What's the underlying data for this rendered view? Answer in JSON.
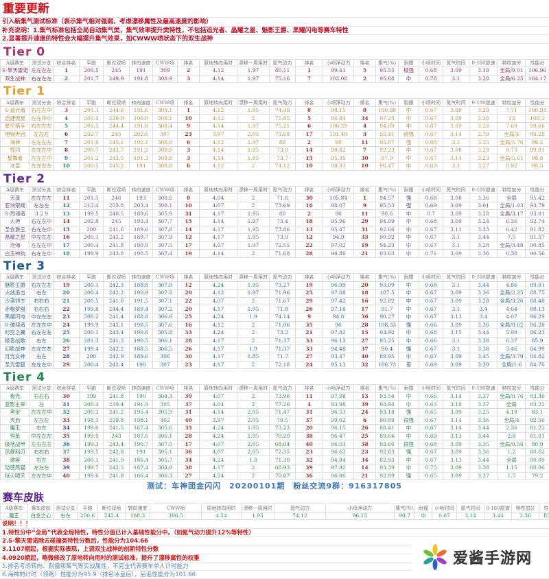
{
  "header": {
    "title": "重要更新",
    "lines": [
      "引入新集气测试标准（表示集气相对强弱，考虑漂移属性及最高速度的影响）",
      "补充说明：1.集气标准包括全局自动集气类，集气效率提升类特性，不包括追光者、晶耀之星、魅影王爵、黑耀闪电等赛车特性",
      "2.显著提升速度的特性会大幅提升集气效果，如CWWW喷状态下的双生战神"
    ]
  },
  "columns": [
    "A级赛车",
    "测试分支",
    "综合排名",
    "平跑",
    "断位双喷",
    "转向速度",
    "CWW喷",
    "排名",
    "原地转向用时",
    "漂移一周用时",
    "氮气动力",
    "排名",
    "小喷净动力",
    "排名",
    "集气(%)",
    "耐撞",
    "小喷时间",
    "氮气时间",
    "0-180提速",
    "特性加分",
    "性能分"
  ],
  "tiers": [
    {
      "name": "Tier 0",
      "color": "#b3306e",
      "text_color": "#8a3a6a",
      "rows": [
        [
          "S-擎天雷诺",
          "左左左左",
          "1",
          "200.5",
          "245",
          "191",
          "309",
          "2",
          "4.12",
          "1.97",
          "80.11",
          "1",
          "99.41",
          "5",
          "95.55",
          "极强",
          "0.68",
          "3.09",
          "3.18",
          "全局/9.01",
          "106.96"
        ],
        [
          "双生战神",
          "右左左左",
          "2",
          "201.7",
          "249.9",
          "191.8",
          "308.9",
          "3",
          "4.14",
          "1.97",
          "75.16",
          "7",
          "103.08",
          "2",
          "95.88",
          "中",
          "0.78",
          "3.1",
          "3.28",
          "全局/6.25",
          "104.17"
        ]
      ]
    },
    {
      "name": "Tier 1",
      "color": "#e8a030",
      "text_color": "#b8924a",
      "rows": [
        [
          "S-追光者",
          "右左左中",
          "3",
          "201.1",
          "244.6",
          "191.6",
          "309.1",
          "1",
          "4.12",
          "1.95",
          "74.49",
          "8",
          "98.15",
          "8",
          "100.88",
          "中",
          "0.67",
          "3.09",
          "3.28",
          "7.71",
          "100.93"
        ],
        [
          "迅捷流星",
          "左左中中",
          "4",
          "200.4",
          "239.9",
          "190.9",
          "308.1",
          "10",
          "4.12",
          "2",
          "75.85",
          "5",
          "94.84",
          "34",
          "97.25",
          "中",
          "0.67",
          "3.08",
          "3.36",
          "13",
          "100.2"
        ],
        [
          "星空猎手",
          "右左左左",
          "5",
          "201.5",
          "244.4",
          "191.8",
          "308.4",
          "9",
          "4.14",
          "1.97",
          "75.21",
          "6",
          "100.39",
          "4",
          "94.89",
          "中",
          "0.67",
          "3.09",
          "3.28",
          "7.69",
          "99.66"
        ],
        [
          "地狱天启",
          "左左左",
          "6",
          "202.7",
          "245",
          "202.6",
          "307",
          "23",
          "3.97",
          "2.05",
          "73.68",
          "17",
          "101.48",
          "3",
          "95.41",
          "很强",
          "0.67",
          "3.14",
          "2.78",
          "全局/4",
          "99.28"
        ],
        [
          "海神",
          "左左左左",
          "7",
          "201.6",
          "245.1",
          "192.1",
          "308.8",
          "6",
          "4.12",
          "1.97",
          "80",
          "2",
          "98",
          "11",
          "95.87",
          "强",
          "0.68",
          "3.1",
          "3.25",
          "全局/5.76",
          "99.2"
        ],
        [
          "惊鸿",
          "左左左中",
          "8",
          "200.7",
          "243.7",
          "191.2",
          "308.9",
          "3",
          "4.14",
          "1.95",
          "73.8",
          "14",
          "98.42",
          "7",
          "92.23",
          "中",
          "0.67",
          "3.08",
          "3.28",
          "8.73",
          "99.01"
        ],
        [
          "星舞者",
          "左左左中",
          "9",
          "201.2",
          "243.5",
          "191.3",
          "308.9",
          "3",
          "4.14",
          "1.85",
          "73.7",
          "15",
          "95.95",
          "30",
          "97.9",
          "中",
          "0.67",
          "3.14",
          "3.23",
          "全局/5.61",
          "98.8"
        ],
        [
          "冰皇",
          "左左左左",
          "10",
          "200.5",
          "245.2",
          "191",
          "308.8",
          "6",
          "4.12",
          "2",
          "74.12",
          "10",
          "98.03",
          "10",
          "96.47",
          "中",
          "0.69",
          "3.1",
          "3.27",
          "8.92",
          "98.5"
        ]
      ]
    },
    {
      "name": "Tier 2",
      "color": "#5e2e8e",
      "text_color": "#6a5a8a",
      "rows": [
        [
          "天蓬",
          "左左左左",
          "11",
          "201.5",
          "246",
          "193",
          "308.6",
          "8",
          "4.04",
          "2",
          "71.6",
          "30",
          "105.84",
          "1",
          "94.57",
          "强",
          "0.68",
          "3.08",
          "3.36",
          "全局",
          "95.42"
        ],
        [
          "亚洲荣耀",
          "左左左",
          "12",
          "212.4",
          "253.8",
          "203.4",
          "308.1",
          "10",
          "4.07",
          "2",
          "73.69",
          "16",
          "98.07",
          "9",
          "95.53",
          "强",
          "0.69",
          "3.09",
          "3.01",
          "全局/1.93",
          "93.79"
        ],
        [
          "S-烈魂者",
          "3 2 9",
          "13",
          "199.5",
          "240.5",
          "189.6",
          "305.9",
          "31",
          "4.17",
          "1.95",
          "80",
          "2",
          "98",
          "11",
          "90.6",
          "中",
          "0.7",
          "3.09",
          "3.28",
          "全局/3.17",
          "93.01"
        ],
        [
          "火神",
          "右左左中",
          "14",
          "202.8",
          "245",
          "193.4",
          "307.7",
          "15",
          "4.14",
          "1.97",
          "73.4",
          "18",
          "95.96",
          "29",
          "94.99",
          "中",
          "0.68",
          "3.09",
          "3.24",
          "6.36",
          "92.74"
        ],
        [
          "圣会爵王",
          "右左左中",
          "15",
          "200",
          "241.6",
          "189.6",
          "307.8",
          "14",
          "4.17",
          "1.95",
          "73.86",
          "13",
          "95.47",
          "31",
          "92.66",
          "中",
          "0.67",
          "3.11",
          "3.33",
          "6.42",
          "91.82"
        ],
        [
          "晶耀之星",
          "中左左左",
          "16",
          "200.1",
          "242.2",
          "189.7",
          "307.9",
          "12",
          "4.17",
          "1.95",
          "73.9",
          "12",
          "94.9",
          "33",
          "90.92",
          "中",
          "0.67",
          "3.1",
          "3.44",
          "7.5",
          "91.57"
        ],
        [
          "沧海",
          "左左左中",
          "17",
          "200.4",
          "241.8",
          "190.9",
          "307.5",
          "17",
          "4.07",
          "1.97",
          "72.55",
          "22",
          "97.02",
          "19",
          "94.23",
          "中",
          "0.67",
          "3.1",
          "3.28",
          "全局/3.48",
          "90.85"
        ],
        [
          "白玉神驹",
          "右左左中",
          "18",
          "199.9",
          "243.8",
          "190.5",
          "307.4",
          "19",
          "4.14",
          "2",
          "71.68",
          "28",
          "96.86",
          "21",
          "93.63",
          "中",
          "0.71",
          "3.09",
          "3.36",
          "6.38",
          "90.56"
        ]
      ]
    },
    {
      "name": "Tier 3",
      "color": "#1e5a96",
      "text_color": "#3a6a9a",
      "rows": [
        [
          "魅影王爵",
          "右左左左",
          "19",
          "200.1",
          "242.3",
          "188.8",
          "307.9",
          "12",
          "4.24",
          "1.95",
          "73.27",
          "19",
          "96.99",
          "20",
          "93.09",
          "中",
          "0.68",
          "3.1",
          "3.44",
          "4.86",
          "89.01"
        ],
        [
          "火线追击",
          "右左",
          "20",
          "200.4",
          "242.2",
          "190.9",
          "307.2",
          "20",
          "4.12",
          "1.97",
          "71.96",
          "25",
          "97.08",
          "18",
          "107.5",
          "中",
          "0.67",
          "3.09",
          "3.36",
          "全局/2.25",
          "88.75"
        ],
        [
          "沙漠领主",
          "右右右",
          "21",
          "200.5",
          "241.8",
          "191.5",
          "307.1",
          "22",
          "4.07",
          "2",
          "71.67",
          "29",
          "97.42",
          "16",
          "92.82",
          "中",
          "0.67",
          "3.09",
          "3.28",
          "全局/3.26",
          "88.48"
        ],
        [
          "赤橙梦魇",
          "右右右",
          "22",
          "199.8",
          "244.4",
          "189.4",
          "307.2",
          "20",
          "4.17",
          "1.95",
          "71.8",
          "26",
          "97.18",
          "17",
          "91.7",
          "中",
          "0.67",
          "3.1",
          "3.4",
          "4.64",
          "88.13"
        ],
        [
          "黑耀闪电",
          "中左左左",
          "23",
          "200.2",
          "241.4",
          "188.8",
          "306.6",
          "25",
          "4.24",
          "1.9",
          "74.14",
          "9",
          "94.8",
          "36",
          "90.27",
          "中",
          "0.67",
          "3.13",
          "3.4",
          "4.07",
          "86.29"
        ],
        [
          "S-破晓者",
          "左左左中",
          "24",
          "199.9",
          "242.1",
          "190.5",
          "307.6",
          "16",
          "4.12",
          "2",
          "71.06",
          "35",
          "96",
          "28",
          "108.33",
          "强",
          "0.66",
          "3.09",
          "3.36",
          "全局/0.62",
          "86.28"
        ],
        [
          "时空之翼",
          "右左左左",
          "25",
          "200.1",
          "243.4",
          "190.6",
          "305.8",
          "33",
          "4.24",
          "2",
          "73.2",
          "21",
          "97.82",
          "15",
          "93.92",
          "中",
          "0.68",
          "3.15",
          "3.44",
          "5.98",
          "86.23"
        ],
        [
          "极音战歌",
          "右左",
          "26",
          "201.3",
          "241.3",
          "190.5",
          "306.1",
          "28",
          "4.17",
          "2",
          "71.37",
          "33",
          "96.13",
          "27",
          "95.25",
          "中",
          "0.66",
          "3.1",
          "3.38",
          "6.37",
          "85.9"
        ],
        [
          "幻影战神",
          "左左左左",
          "27",
          "199.4",
          "242.2",
          "188.5",
          "306.5",
          "26",
          "4.17",
          "1.9",
          "71.37",
          "33",
          "94.48",
          "37",
          "90.4",
          "强",
          "0.67",
          "3.1",
          "3.38",
          "3.46",
          "84.99"
        ],
        [
          "月光女神",
          "右左",
          "28",
          "200",
          "242.9",
          "189.6",
          "306",
          "30",
          "4.17",
          "1.85",
          "71.7",
          "27",
          "93.47",
          "40",
          "89.95",
          "中",
          "0.67",
          "3.09",
          "3.45",
          "全局/3.79",
          "84.82"
        ],
        [
          "圣光雪狐",
          "左左左中",
          "29",
          "200.4",
          "242.4",
          "190",
          "307",
          "23",
          "4.17",
          "2",
          "72.18",
          "24",
          "95.13",
          "32",
          "106.73",
          "差",
          "0.69",
          "3.09",
          "3.39",
          "全局/1.6",
          "84.76"
        ]
      ]
    },
    {
      "name": "Tier 4",
      "color": "#1e8a4e",
      "text_color": "#3a8a5a",
      "rows": [
        [
          "极光",
          "右右右",
          "30",
          "199",
          "241.8",
          "190",
          "304.3",
          "39",
          "4.07",
          "2",
          "73.96",
          "11",
          "97.98",
          "13",
          "93.54",
          "中",
          "0.66",
          "3.14",
          "3.37",
          "全局/0.76",
          "83.36"
        ],
        [
          "蓝影主宰",
          "左",
          "31",
          "200.4",
          "239.4",
          "191.9",
          "305",
          "37",
          "4.04",
          "2",
          "77.26",
          "4",
          "93.98",
          "39",
          "93.98",
          "中",
          "0.63",
          "3.18",
          "3.37",
          "全局",
          "83.22"
        ],
        [
          "黑金",
          "左左左中",
          "32",
          "200.2",
          "241.2",
          "195.4",
          "305.9",
          "31",
          "4.14",
          "2.05",
          "71.47",
          "31",
          "96.53",
          "24",
          "93.18",
          "强",
          "0.65",
          "3.09",
          "3.25",
          "4.18",
          "83.1"
        ],
        [
          "天启",
          "左左左",
          "33",
          "198.1",
          "239.8",
          "198.1",
          "302",
          "40",
          "3.97",
          "2.05",
          "70.5",
          "37",
          "99.02",
          "6",
          "90.89",
          "很强",
          "0.67",
          "3.14",
          "3.36",
          "全局/4",
          "82.56"
        ],
        [
          "魔王",
          "右左",
          "34",
          "199.6",
          "241.5",
          "187.4",
          "305.6",
          "35",
          "4.24",
          "1.95",
          "73.23",
          "20",
          "96.15",
          "26",
          "88.41",
          "中",
          "0.67",
          "3.14",
          "3.44",
          "2.36",
          "81.22"
        ],
        [
          "恒星",
          "中左左左",
          "35",
          "199.9",
          "243",
          "187.6",
          "306.1",
          "28",
          "4.24",
          "1.95",
          "70.29",
          "38",
          "96.47",
          "25",
          "89.64",
          "中",
          "0.69",
          "3.13",
          "3.44",
          "2.8",
          "81.01"
        ],
        [
          "极地战甲",
          "左右左左",
          "36",
          "199.3",
          "243.4",
          "190.7",
          "307.5",
          "17",
          "4.07",
          "2.05",
          "68.04",
          "40",
          "94.03",
          "38",
          "93.66",
          "很强",
          "0.68",
          "3.09",
          "3.35",
          "全局/0.56",
          "80.9"
        ],
        [
          "风暴利刃",
          "右右右",
          "37",
          "199.5",
          "242.8",
          "191",
          "305.1",
          "36",
          "4.07",
          "2.05",
          "72.35",
          "23",
          "96.62",
          "23",
          "92.83",
          "强",
          "0.67",
          "3.09",
          "3.36",
          "1.2",
          "80.62"
        ],
        [
          "骇客",
          "右左",
          "38",
          "200.1",
          "241.9",
          "186.4",
          "305.7",
          "34",
          "4.24",
          "1.8",
          "71.39",
          "32",
          "94.84",
          "34",
          "82.93",
          "中",
          "0.67",
          "3.13",
          "3.44",
          "全局",
          "80.09"
        ],
        [
          "动感熊猫",
          "左左左",
          "39",
          "199.7",
          "242.5",
          "187.4",
          "304.9",
          "38",
          "4.17",
          "2",
          "68.93",
          "39",
          "97.92",
          "14",
          "93.39",
          "中",
          "0.75",
          "3.09",
          "3.38",
          "1.15",
          "80.06"
        ],
        [
          "狱火啸天",
          "左左左中",
          "40",
          "199.6",
          "241.8",
          "186.4",
          "306.3",
          "27",
          "4.24",
          "2",
          "70.87",
          "36",
          "96.86",
          "21",
          "92.89",
          "强",
          "0.65",
          "3.09",
          "3.37",
          "1.5",
          "79.2"
        ]
      ]
    }
  ],
  "test_line": "测试：车神团金闪闪　20200101期　粉丝交流9群：916317805",
  "skins": {
    "title": "赛车皮肤",
    "text_color": "#3a8a5a",
    "columns": [
      "A级赛车",
      "赛车皮肤",
      "测试分支",
      "平跑",
      "断位双喷",
      "转向速度",
      "CWW喷",
      "原地转向用时",
      "漂移一周用时",
      "氮气动力",
      "小喷净动力",
      "集气(%)",
      "耐撞",
      "小喷时间",
      "氮气时间",
      "0-180提速",
      "特性加分",
      "性能分"
    ],
    "rows": [
      [
        "魔王",
        "白金之心",
        "右左",
        "200.6",
        "242.4",
        "188.3",
        "306.5",
        "4.24",
        "1.95",
        "74.12",
        "96.15",
        "90.7",
        "中",
        "0.67",
        "3.14",
        "3.44",
        "2.36",
        "83.78"
      ]
    ]
  },
  "notes": {
    "title": "说明！！！",
    "items": [
      "1.特性分中“全局”代表全局特性，特性分值已计入基础性能分中。（如氮气动力提升12%等特性）",
      "2.S-擎天雷诺除去碰撞类特性分数后，性能分为104.66",
      "3.1107期起，根据实际表现，上调双生战神的创新特性分数",
      "4.0920期起，略微修改了原地转向用时的测试标准，提升了漂移属性的权重",
      "5.排名考虑转向、耐撞和集气等实战属性，不完全代表赛车单人计时能力",
      "6.海神的计时（领跑）性能分为95.9（排名冰皇后），后追性能分为101.66"
    ]
  },
  "logo": {
    "text": "爱酱手游网"
  }
}
